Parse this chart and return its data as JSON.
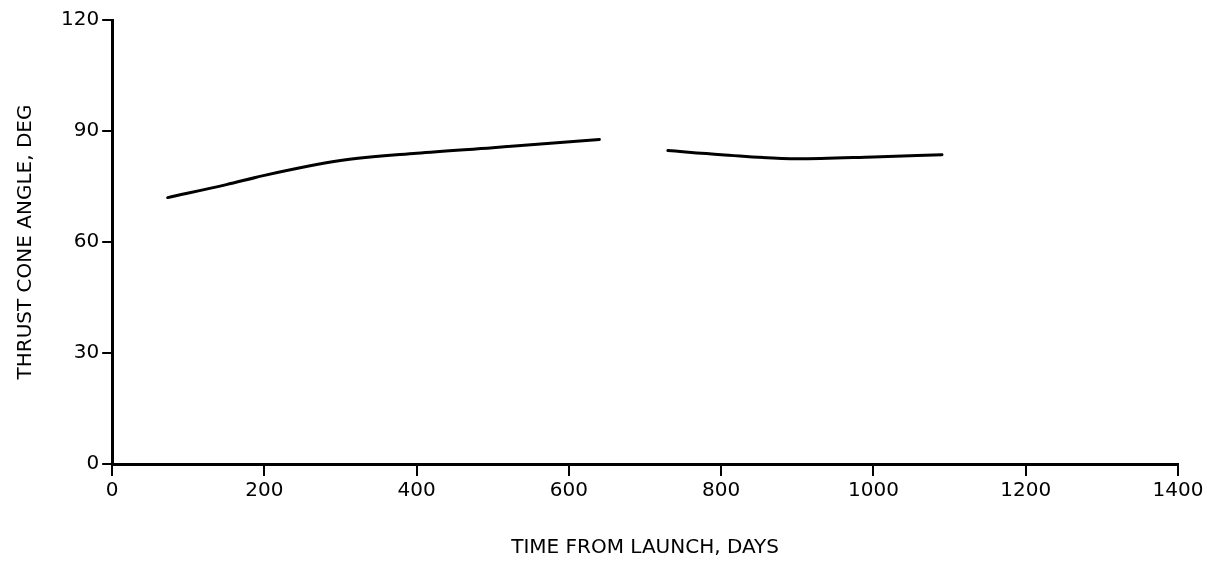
{
  "chart_data": {
    "type": "line",
    "xlabel": "TIME FROM LAUNCH, DAYS",
    "ylabel": "THRUST CONE ANGLE, DEG",
    "series": [
      {
        "color": "#000000",
        "x": [
          73,
          150,
          200,
          300,
          400,
          500,
          640
        ],
        "values": [
          72,
          75.5,
          78,
          82,
          84,
          85.5,
          87.7
        ]
      },
      {
        "color": "#000000",
        "x": [
          730,
          800,
          900,
          1000,
          1090
        ],
        "values": [
          84.7,
          83.6,
          82.5,
          83,
          83.6
        ]
      }
    ],
    "xlim": [
      0,
      1400
    ],
    "xticks": [
      0,
      200,
      400,
      600,
      800,
      1000,
      1200,
      1400
    ],
    "ylim": [
      0,
      120
    ],
    "yticks": [
      0,
      30,
      60,
      90,
      120
    ],
    "grid": false,
    "legend": false,
    "marker": "none",
    "line_style": "solid"
  }
}
